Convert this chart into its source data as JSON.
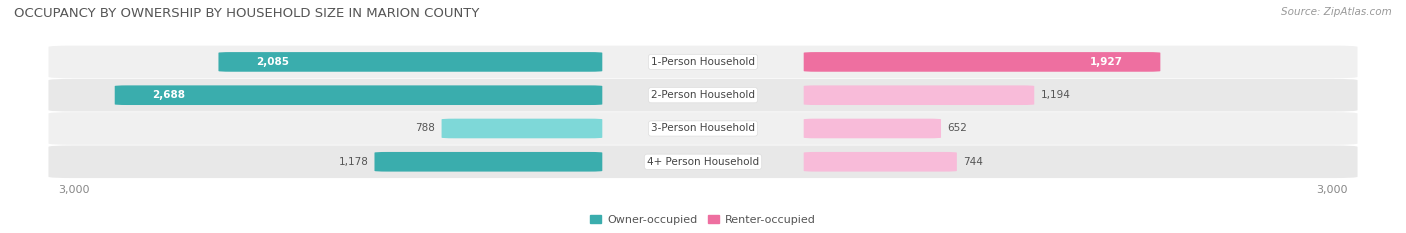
{
  "title": "OCCUPANCY BY OWNERSHIP BY HOUSEHOLD SIZE IN MARION COUNTY",
  "source": "Source: ZipAtlas.com",
  "categories": [
    "1-Person Household",
    "2-Person Household",
    "3-Person Household",
    "4+ Person Household"
  ],
  "owner_values": [
    2085,
    2688,
    788,
    1178
  ],
  "renter_values": [
    1927,
    1194,
    652,
    744
  ],
  "axis_max": 3000,
  "owner_color_dark": "#3AADAD",
  "owner_color_light": "#7ED8D8",
  "renter_color_dark": "#EE6FA0",
  "renter_color_light": "#F8BBD9",
  "row_bg_color_1": "#F0F0F0",
  "row_bg_color_2": "#E8E8E8",
  "label_bg_color": "#FFFFFF",
  "title_fontsize": 9.5,
  "source_fontsize": 7.5,
  "value_fontsize": 7.5,
  "label_fontsize": 7.5,
  "axis_fontsize": 8,
  "legend_fontsize": 8
}
